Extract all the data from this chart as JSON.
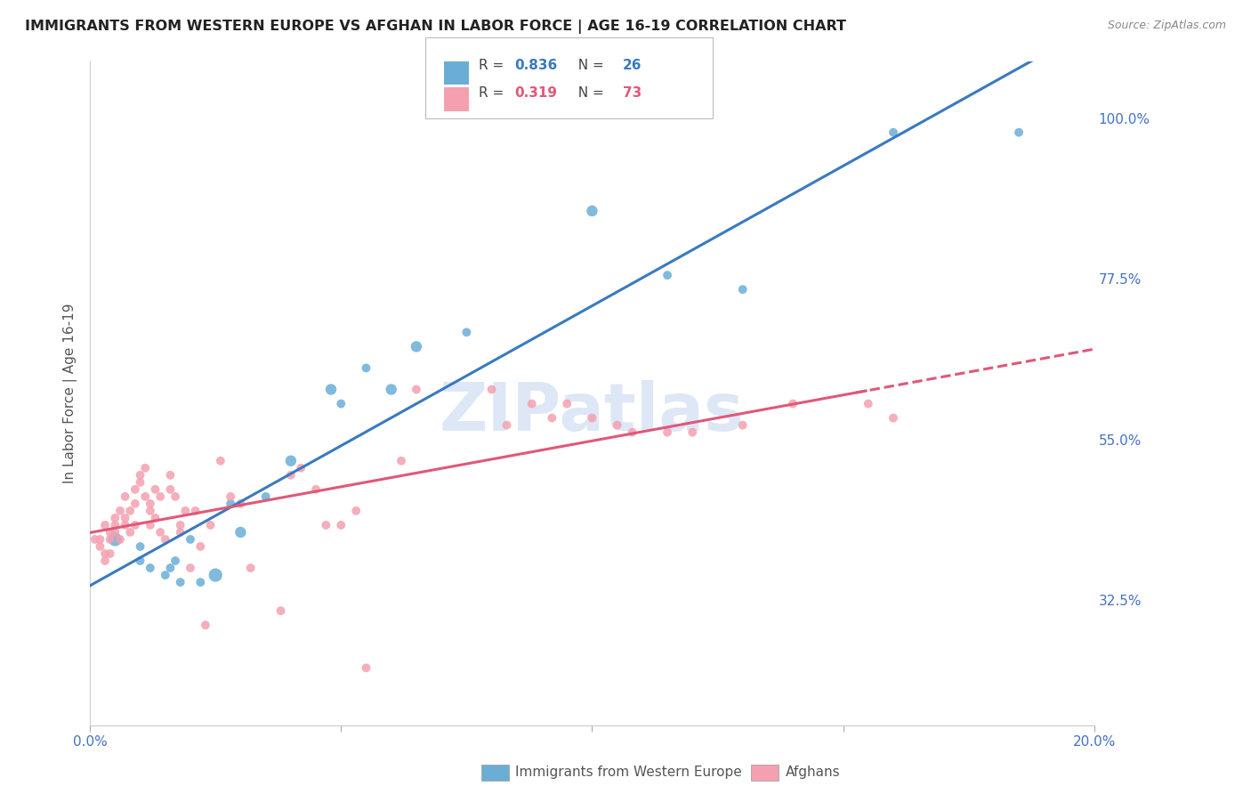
{
  "title": "IMMIGRANTS FROM WESTERN EUROPE VS AFGHAN IN LABOR FORCE | AGE 16-19 CORRELATION CHART",
  "source": "Source: ZipAtlas.com",
  "ylabel": "In Labor Force | Age 16-19",
  "r_blue": 0.836,
  "n_blue": 26,
  "r_pink": 0.319,
  "n_pink": 73,
  "blue_color": "#6aaed6",
  "pink_color": "#f4a0b0",
  "trend_blue": "#3a7abf",
  "trend_pink": "#e05878",
  "axis_label_color": "#4472c4",
  "title_color": "#222222",
  "background_color": "#ffffff",
  "grid_color": "#dddddd",
  "watermark_text": "ZIPatlas",
  "watermark_color": "#c8d8f0",
  "legend_label_blue": "Immigrants from Western Europe",
  "legend_label_pink": "Afghans",
  "xlim": [
    0.0,
    0.2
  ],
  "ylim": [
    0.15,
    1.08
  ],
  "yticks": [
    0.325,
    0.55,
    0.775,
    1.0
  ],
  "ytick_labels": [
    "32.5%",
    "55.0%",
    "77.5%",
    "100.0%"
  ],
  "xticks": [
    0.0,
    0.05,
    0.1,
    0.15,
    0.2
  ],
  "xtick_labels": [
    "0.0%",
    "",
    "",
    "",
    "20.0%"
  ],
  "blue_scatter_x": [
    0.005,
    0.01,
    0.01,
    0.012,
    0.015,
    0.016,
    0.017,
    0.018,
    0.02,
    0.022,
    0.025,
    0.028,
    0.03,
    0.035,
    0.04,
    0.048,
    0.05,
    0.055,
    0.06,
    0.065,
    0.075,
    0.1,
    0.115,
    0.13,
    0.16,
    0.185
  ],
  "blue_scatter_y": [
    0.41,
    0.4,
    0.38,
    0.37,
    0.36,
    0.37,
    0.38,
    0.35,
    0.41,
    0.35,
    0.36,
    0.46,
    0.42,
    0.47,
    0.52,
    0.62,
    0.6,
    0.65,
    0.62,
    0.68,
    0.7,
    0.87,
    0.78,
    0.76,
    0.98,
    0.98
  ],
  "blue_scatter_size": [
    120,
    50,
    50,
    50,
    50,
    50,
    50,
    50,
    50,
    50,
    120,
    50,
    80,
    50,
    80,
    80,
    50,
    50,
    80,
    80,
    50,
    80,
    50,
    50,
    50,
    50
  ],
  "pink_scatter_x": [
    0.001,
    0.002,
    0.002,
    0.003,
    0.003,
    0.003,
    0.004,
    0.004,
    0.004,
    0.005,
    0.005,
    0.005,
    0.006,
    0.006,
    0.007,
    0.007,
    0.007,
    0.008,
    0.008,
    0.009,
    0.009,
    0.009,
    0.01,
    0.01,
    0.011,
    0.011,
    0.012,
    0.012,
    0.012,
    0.013,
    0.013,
    0.014,
    0.014,
    0.015,
    0.016,
    0.016,
    0.017,
    0.018,
    0.018,
    0.019,
    0.02,
    0.021,
    0.022,
    0.023,
    0.024,
    0.026,
    0.028,
    0.03,
    0.032,
    0.038,
    0.04,
    0.042,
    0.045,
    0.047,
    0.05,
    0.053,
    0.055,
    0.062,
    0.065,
    0.08,
    0.083,
    0.088,
    0.092,
    0.095,
    0.1,
    0.105,
    0.108,
    0.115,
    0.12,
    0.13,
    0.14,
    0.155,
    0.16
  ],
  "pink_scatter_y": [
    0.41,
    0.41,
    0.4,
    0.39,
    0.38,
    0.43,
    0.42,
    0.41,
    0.39,
    0.43,
    0.44,
    0.42,
    0.45,
    0.41,
    0.43,
    0.47,
    0.44,
    0.45,
    0.42,
    0.43,
    0.46,
    0.48,
    0.5,
    0.49,
    0.47,
    0.51,
    0.45,
    0.46,
    0.43,
    0.48,
    0.44,
    0.47,
    0.42,
    0.41,
    0.5,
    0.48,
    0.47,
    0.43,
    0.42,
    0.45,
    0.37,
    0.45,
    0.4,
    0.29,
    0.43,
    0.52,
    0.47,
    0.46,
    0.37,
    0.31,
    0.5,
    0.51,
    0.48,
    0.43,
    0.43,
    0.45,
    0.23,
    0.52,
    0.62,
    0.62,
    0.57,
    0.6,
    0.58,
    0.6,
    0.58,
    0.57,
    0.56,
    0.56,
    0.56,
    0.57,
    0.6,
    0.6,
    0.58
  ],
  "pink_scatter_size": [
    50,
    50,
    50,
    50,
    50,
    50,
    50,
    50,
    50,
    50,
    50,
    50,
    50,
    50,
    50,
    50,
    50,
    50,
    50,
    50,
    50,
    50,
    50,
    50,
    50,
    50,
    50,
    50,
    50,
    50,
    50,
    50,
    50,
    50,
    50,
    50,
    50,
    50,
    50,
    50,
    50,
    50,
    50,
    50,
    50,
    50,
    50,
    50,
    50,
    50,
    50,
    50,
    50,
    50,
    50,
    50,
    50,
    50,
    50,
    50,
    50,
    50,
    50,
    50,
    50,
    50,
    50,
    50,
    50,
    50,
    50,
    50,
    50
  ]
}
